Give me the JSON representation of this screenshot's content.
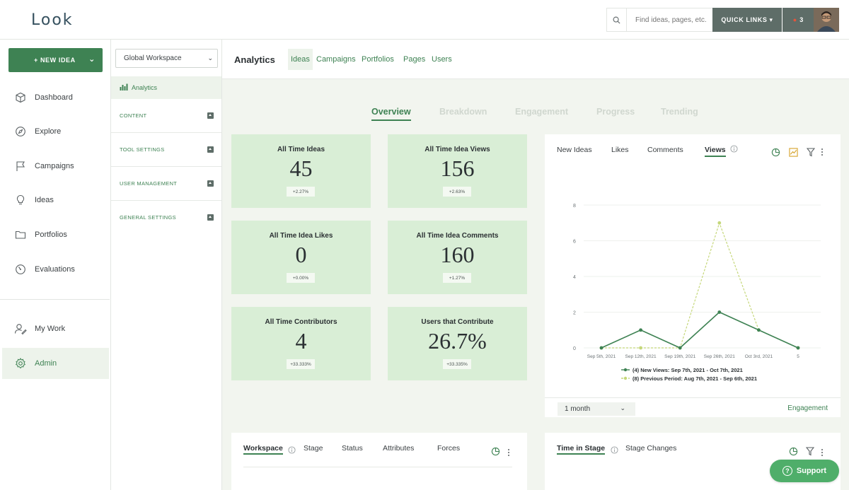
{
  "app": {
    "logo": "Look"
  },
  "topbar": {
    "search_placeholder": "Find ideas, pages, etc.",
    "quick_links": "QUICK LINKS ▾",
    "notifications": "3"
  },
  "leftnav": {
    "new_idea": "+ NEW IDEA",
    "items": [
      {
        "label": "Dashboard",
        "icon": "cube-icon"
      },
      {
        "label": "Explore",
        "icon": "compass-icon"
      },
      {
        "label": "Campaigns",
        "icon": "flag-icon"
      },
      {
        "label": "Ideas",
        "icon": "lightbulb-icon"
      },
      {
        "label": "Portfolios",
        "icon": "folder-icon"
      },
      {
        "label": "Evaluations",
        "icon": "gauge-icon"
      },
      {
        "label": "My Work",
        "icon": "user-edit-icon"
      },
      {
        "label": "Admin",
        "icon": "gear-icon"
      }
    ]
  },
  "sidebar2": {
    "workspace": "Global Workspace",
    "analytics": "Analytics",
    "sections": [
      "CONTENT",
      "TOOL SETTINGS",
      "USER MANAGEMENT",
      "GENERAL SETTINGS"
    ]
  },
  "header": {
    "title": "Analytics",
    "tabs": [
      "Ideas",
      "Campaigns",
      "Portfolios",
      "Pages",
      "Users"
    ]
  },
  "subtabs": [
    "Overview",
    "Breakdown",
    "Engagement",
    "Progress",
    "Trending"
  ],
  "cards": [
    {
      "label": "All Time Ideas",
      "value": "45",
      "change": "+2.27%"
    },
    {
      "label": "All Time Idea Views",
      "value": "156",
      "change": "+2.63%"
    },
    {
      "label": "All Time Idea Likes",
      "value": "0",
      "change": "+0.00%"
    },
    {
      "label": "All Time Idea Comments",
      "value": "160",
      "change": "+1.27%"
    },
    {
      "label": "All Time Contributors",
      "value": "4",
      "change": "+33.333%"
    },
    {
      "label": "Users that Contribute",
      "value": "26.7%",
      "change": "+33.335%"
    }
  ],
  "chart_panel": {
    "tabs": [
      "New Ideas",
      "Likes",
      "Comments",
      "Views"
    ],
    "month": "1 month",
    "engagement": "Engagement"
  },
  "chart_data": {
    "type": "line",
    "categories": [
      "Sep 5th, 2021",
      "Sep 12th, 2021",
      "Sep 19th, 2021",
      "Sep 26th, 2021",
      "Oct 3rd, 2021",
      "5"
    ],
    "series": [
      {
        "name": "(4) New Views: Sep 7th, 2021 - Oct 7th, 2021",
        "values": [
          0,
          1,
          0,
          2,
          1,
          0
        ],
        "color": "#3e8253"
      },
      {
        "name": "(8) Previous Period: Aug 7th, 2021 - Sep 6th, 2021",
        "values": [
          0,
          0,
          0,
          7,
          1,
          0
        ],
        "color": "#c5d77a"
      }
    ],
    "yticks": [
      0,
      2,
      4,
      6,
      8
    ],
    "ylim": [
      0,
      8
    ],
    "grid": true,
    "legend": "bottom"
  },
  "bottom_left": {
    "tabs": [
      "Workspace",
      "Stage",
      "Status",
      "Attributes",
      "Forces"
    ]
  },
  "bottom_right": {
    "tabs": [
      "Time in Stage",
      "Stage Changes"
    ]
  },
  "support": "Support",
  "colors": {
    "accent": "#3e8253",
    "card_bg": "#d9eed6",
    "prev_period": "#c5d77a"
  }
}
